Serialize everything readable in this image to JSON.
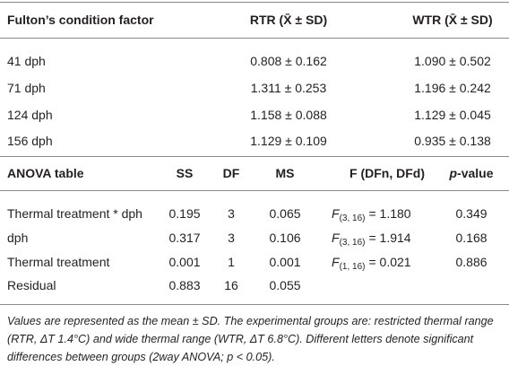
{
  "summary_table": {
    "header": [
      "Fulton’s condition factor",
      "RTR (X̄ ± SD)",
      "WTR (X̄ ± SD)"
    ],
    "rows": [
      [
        "41 dph",
        "0.808 ± 0.162",
        "1.090 ± 0.502"
      ],
      [
        "71 dph",
        "1.311 ± 0.253",
        "1.196 ± 0.242"
      ],
      [
        "124 dph",
        "1.158 ± 0.088",
        "1.129 ± 0.045"
      ],
      [
        "156 dph",
        "1.129 ± 0.109",
        "0.935 ± 0.138"
      ]
    ]
  },
  "anova_table": {
    "header": [
      "ANOVA table",
      "SS",
      "DF",
      "MS",
      "F (DFn, DFd)",
      {
        "italic": "p",
        "rest": "-value"
      }
    ],
    "rows": [
      [
        "Thermal treatment * dph",
        "0.195",
        "3",
        "0.065",
        {
          "symbol": "F",
          "subscript": "(3, 16)",
          "rest": "= 1.180"
        },
        "0.349"
      ],
      [
        "dph",
        "0.317",
        "3",
        "0.106",
        {
          "symbol": "F",
          "subscript": "(3, 16)",
          "rest": "= 1.914"
        },
        "0.168"
      ],
      [
        "Thermal treatment",
        "0.001",
        "1",
        "0.001",
        {
          "symbol": "F",
          "subscript": "(1, 16)",
          "rest": "= 0.021"
        },
        "0.886"
      ],
      [
        "Residual",
        "0.883",
        "16",
        "0.055"
      ]
    ]
  },
  "footnote": "Values are represented as the mean ± SD. The experimental groups are: restricted thermal range (RTR, ΔT 1.4°C) and wide thermal range (WTR, ΔT 6.8°C). Different letters denote significant differences between groups (2way ANOVA; p < 0.05)."
}
